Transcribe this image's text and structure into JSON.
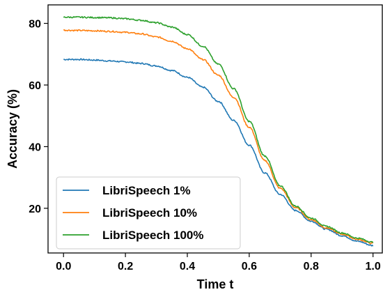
{
  "chart_data": {
    "type": "line",
    "title": "",
    "xlabel": "Time t",
    "ylabel": "Accuracy (%)",
    "xlim": [
      -0.05,
      1.03
    ],
    "ylim": [
      5.5,
      86
    ],
    "xticks": [
      "0.0",
      "0.2",
      "0.4",
      "0.6",
      "0.8",
      "1.0"
    ],
    "yticks": [
      "20",
      "40",
      "60",
      "80"
    ],
    "grid": false,
    "legend_position": "lower-left",
    "series": [
      {
        "name": "LibriSpeech 1%",
        "color": "#1f77b4",
        "x": [
          0.0,
          0.05,
          0.1,
          0.15,
          0.2,
          0.25,
          0.3,
          0.35,
          0.4,
          0.45,
          0.5,
          0.55,
          0.6,
          0.65,
          0.7,
          0.75,
          0.8,
          0.85,
          0.9,
          0.95,
          1.0
        ],
        "y": [
          68.3,
          68.3,
          68.1,
          67.8,
          67.5,
          67.0,
          66.2,
          64.7,
          62.5,
          59.3,
          54.7,
          48.5,
          40.5,
          31.5,
          24.5,
          19.3,
          15.8,
          13.2,
          11.1,
          9.3,
          7.9
        ]
      },
      {
        "name": "LibriSpeech 10%",
        "color": "#ff7f0e",
        "x": [
          0.0,
          0.05,
          0.1,
          0.15,
          0.2,
          0.25,
          0.3,
          0.35,
          0.4,
          0.45,
          0.5,
          0.55,
          0.6,
          0.65,
          0.7,
          0.75,
          0.8,
          0.85,
          0.9,
          0.95,
          1.0
        ],
        "y": [
          77.8,
          77.7,
          77.6,
          77.4,
          77.1,
          76.6,
          75.6,
          74.2,
          71.8,
          68.3,
          63.2,
          56.0,
          46.3,
          35.5,
          26.5,
          20.2,
          16.3,
          13.6,
          11.6,
          9.9,
          8.6
        ]
      },
      {
        "name": "LibriSpeech 100%",
        "color": "#2ca02c",
        "x": [
          0.0,
          0.05,
          0.1,
          0.15,
          0.2,
          0.25,
          0.3,
          0.35,
          0.4,
          0.45,
          0.5,
          0.55,
          0.6,
          0.65,
          0.7,
          0.75,
          0.8,
          0.85,
          0.9,
          0.95,
          1.0
        ],
        "y": [
          82.0,
          82.0,
          81.9,
          81.8,
          81.5,
          81.0,
          80.2,
          78.8,
          76.4,
          72.6,
          66.8,
          58.8,
          48.2,
          37.0,
          27.3,
          20.7,
          16.8,
          14.1,
          12.0,
          10.3,
          9.0
        ]
      }
    ]
  }
}
